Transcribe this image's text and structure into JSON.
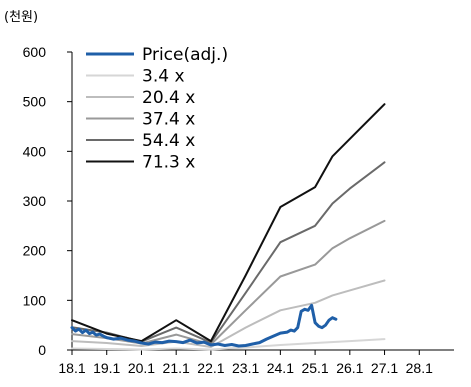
{
  "unit_label": "(천원)",
  "chart_data": {
    "type": "line",
    "ylim": [
      0,
      600
    ],
    "yticks": [
      0,
      100,
      200,
      300,
      400,
      500,
      600
    ],
    "xlim": [
      2018.0,
      2029.0
    ],
    "x_tick_labels": [
      "18.1",
      "19.1",
      "20.1",
      "21.1",
      "22.1",
      "23.1",
      "24.1",
      "25.1",
      "26.1",
      "27.1",
      "28.1"
    ],
    "x_tick_values": [
      2018.0,
      2019.0,
      2020.0,
      2021.0,
      2022.0,
      2023.0,
      2024.0,
      2025.0,
      2026.0,
      2027.0,
      2028.0
    ],
    "legend_position": "top-left",
    "grid": false,
    "series": [
      {
        "name": "Price(adj.)",
        "color": "#1f5fa8",
        "width": 3,
        "x": [
          2018.0,
          2018.1,
          2018.2,
          2018.3,
          2018.4,
          2018.5,
          2018.6,
          2018.7,
          2018.8,
          2018.9,
          2019.0,
          2019.2,
          2019.4,
          2019.6,
          2019.8,
          2020.0,
          2020.2,
          2020.4,
          2020.6,
          2020.8,
          2021.0,
          2021.2,
          2021.4,
          2021.6,
          2021.8,
          2022.0,
          2022.2,
          2022.4,
          2022.6,
          2022.8,
          2023.0,
          2023.2,
          2023.4,
          2023.6,
          2023.8,
          2024.0,
          2024.2,
          2024.3,
          2024.4,
          2024.5,
          2024.6,
          2024.7,
          2024.8,
          2024.9,
          2025.0,
          2025.1,
          2025.2,
          2025.3,
          2025.4,
          2025.5,
          2025.6
        ],
        "y": [
          45,
          38,
          42,
          35,
          40,
          33,
          36,
          30,
          32,
          28,
          25,
          22,
          24,
          20,
          18,
          14,
          12,
          16,
          15,
          18,
          17,
          15,
          20,
          14,
          16,
          10,
          12,
          9,
          11,
          8,
          9,
          12,
          15,
          22,
          28,
          34,
          36,
          40,
          38,
          45,
          78,
          82,
          80,
          90,
          55,
          48,
          45,
          50,
          60,
          65,
          62
        ]
      },
      {
        "name": "3.4 x",
        "color": "#d6d6d6",
        "width": 2,
        "x": [
          2018.0,
          2019.0,
          2020.0,
          2021.0,
          2022.0,
          2023.0,
          2024.0,
          2025.0,
          2026.0,
          2027.0
        ],
        "y": [
          3,
          2,
          1,
          3,
          1,
          5,
          10,
          14,
          18,
          22
        ]
      },
      {
        "name": "20.4 x",
        "color": "#bdbdbd",
        "width": 2,
        "x": [
          2018.0,
          2019.0,
          2020.0,
          2021.0,
          2022.0,
          2023.0,
          2024.0,
          2025.0,
          2025.5,
          2026.0,
          2027.0
        ],
        "y": [
          18,
          14,
          8,
          17,
          6,
          45,
          80,
          95,
          110,
          120,
          140
        ]
      },
      {
        "name": "37.4 x",
        "color": "#999999",
        "width": 2,
        "x": [
          2018.0,
          2019.0,
          2020.0,
          2021.0,
          2022.0,
          2023.0,
          2024.0,
          2025.0,
          2025.5,
          2026.0,
          2027.0
        ],
        "y": [
          32,
          24,
          13,
          31,
          11,
          80,
          148,
          172,
          205,
          225,
          260
        ]
      },
      {
        "name": "54.4 x",
        "color": "#6a6a6a",
        "width": 2,
        "x": [
          2018.0,
          2019.0,
          2020.0,
          2021.0,
          2022.0,
          2023.0,
          2024.0,
          2025.0,
          2025.5,
          2026.0,
          2027.0
        ],
        "y": [
          46,
          35,
          17,
          45,
          15,
          115,
          217,
          250,
          295,
          325,
          378
        ]
      },
      {
        "name": "71.3 x",
        "color": "#111111",
        "width": 2,
        "x": [
          2018.0,
          2019.0,
          2020.0,
          2021.0,
          2022.0,
          2023.0,
          2024.0,
          2025.0,
          2025.5,
          2026.0,
          2027.0
        ],
        "y": [
          60,
          33,
          18,
          60,
          18,
          150,
          288,
          328,
          390,
          425,
          495
        ]
      }
    ]
  }
}
